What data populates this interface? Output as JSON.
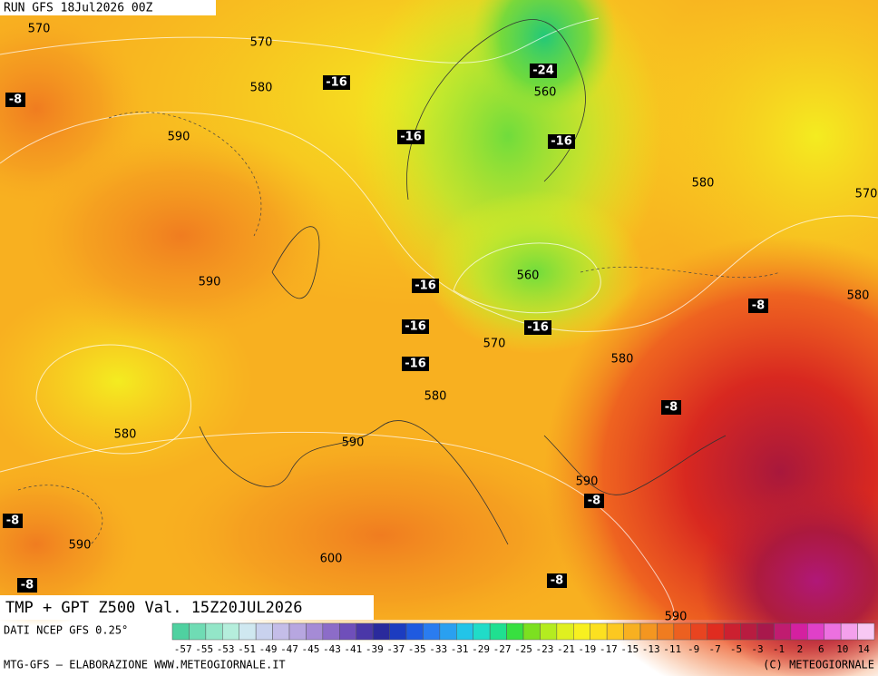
{
  "run_label": "RUN GFS 18Jul2026 00Z",
  "map_title": "TMP + GPT Z500 Val. 15Z20JUL2026",
  "contour_labels": [
    "570",
    "570",
    "580",
    "590",
    "590",
    "580",
    "590",
    "600",
    "590",
    "580",
    "570",
    "560",
    "560",
    "580",
    "570",
    "580",
    "580",
    "590",
    "590"
  ],
  "temp_labels": [
    "-8",
    "-16",
    "-16",
    "-24",
    "-16",
    "-16",
    "-16",
    "-16",
    "-16",
    "-8",
    "-8",
    "-8",
    "-8",
    "-8",
    "-8"
  ],
  "source_label": "DATI NCEP GFS 0.25°",
  "credit_left": "MTG-GFS — ELABORAZIONE WWW.METEOGIORNALE.IT",
  "credit_right": "(C) METEOGIORNALE",
  "colorbar": {
    "labels": [
      "-57",
      "-55",
      "-53",
      "-51",
      "-49",
      "-47",
      "-45",
      "-43",
      "-41",
      "-39",
      "-37",
      "-35",
      "-33",
      "-31",
      "-29",
      "-27",
      "-25",
      "-23",
      "-21",
      "-19",
      "-17",
      "-15",
      "-13",
      "-11",
      "-9",
      "-7",
      "-5",
      "-3",
      "-1",
      "2",
      "6",
      "10",
      "14"
    ],
    "colors": [
      "#4fd1a0",
      "#6fdcb4",
      "#93e6c8",
      "#b5eedc",
      "#cfe8f0",
      "#c9d2ee",
      "#c4bde8",
      "#b7a6e0",
      "#a58bd6",
      "#8c6cc8",
      "#6f4fba",
      "#4a37a8",
      "#2a2a9c",
      "#1c3cc0",
      "#1f5ae0",
      "#2a7cf0",
      "#2aa0f0",
      "#22c4e8",
      "#20dcc8",
      "#20e090",
      "#38e040",
      "#7ce020",
      "#b4ec20",
      "#e0f020",
      "#f8f020",
      "#fce020",
      "#fcc820",
      "#f8b020",
      "#f49620",
      "#f07c20",
      "#ec6020",
      "#e84420",
      "#e02c20",
      "#cc2030",
      "#b81c40",
      "#a8184c",
      "#c01c70",
      "#d420a0",
      "#e040c8",
      "#ec70e0",
      "#f4a0ec",
      "#f8c8f4"
    ]
  }
}
